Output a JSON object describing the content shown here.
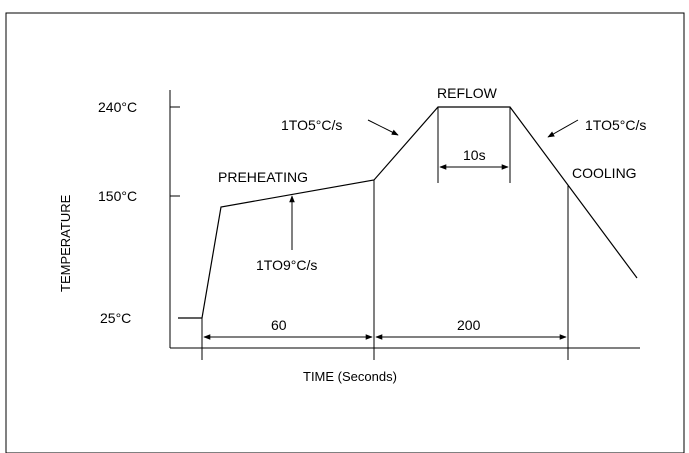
{
  "diagram": {
    "y_axis_title": "TEMPERATURE",
    "x_axis_title": "TIME (Seconds)",
    "y_ticks": [
      "240°C",
      "150°C",
      "25°C"
    ],
    "stages": {
      "preheating": "PREHEATING",
      "reflow": "REFLOW",
      "cooling": "COOLING"
    },
    "rates": {
      "preheat_rate": "1TO9°C/s",
      "ramp_up_rate": "1TO5°C/s",
      "cool_down_rate": "1TO5°C/s"
    },
    "durations": {
      "preheat": "60",
      "reflow_window": "200",
      "peak_hold": "10s"
    }
  }
}
